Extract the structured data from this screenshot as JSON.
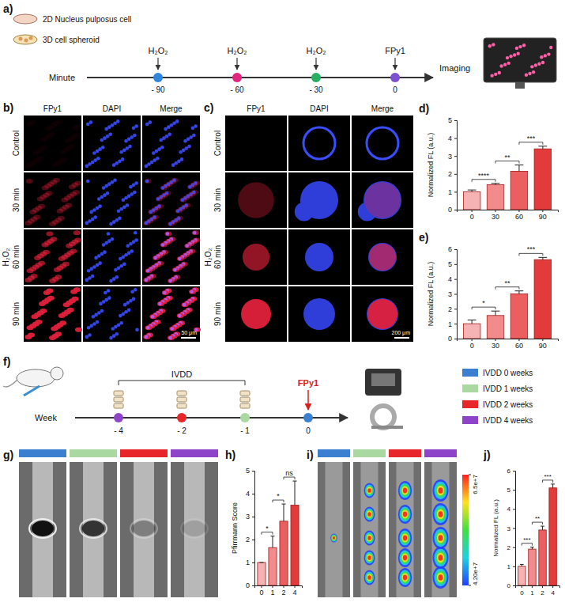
{
  "chart_data": [
    {
      "panel": "d)",
      "type": "bar",
      "categories": [
        "0",
        "30",
        "60",
        "90"
      ],
      "values": [
        1,
        1.4,
        2.15,
        3.4
      ],
      "errors": [
        0.1,
        0.07,
        0.35,
        0.15
      ],
      "colors": [
        "#f6b3b3",
        "#f28c8c",
        "#ea5f5f",
        "#e23b3b"
      ],
      "y_label": "Normalized FL (a.u.)",
      "ylim": [
        0,
        5
      ],
      "yticks": [
        0,
        1,
        2,
        3,
        4,
        5
      ],
      "annotations": [
        "****",
        "**",
        "***"
      ]
    },
    {
      "panel": "e)",
      "type": "bar",
      "categories": [
        "0",
        "30",
        "60",
        "90"
      ],
      "values": [
        1,
        1.55,
        3,
        5.3
      ],
      "errors": [
        0.25,
        0.3,
        0.2,
        0.15
      ],
      "colors": [
        "#f6b3b3",
        "#f28c8c",
        "#ea5f5f",
        "#e23b3b"
      ],
      "y_label": "Normalized FL (a.u.)",
      "ylim": [
        0,
        6
      ],
      "yticks": [
        0,
        1,
        2,
        3,
        4,
        5,
        6
      ],
      "annotations": [
        "*",
        "**",
        "***"
      ]
    },
    {
      "panel": "h)",
      "type": "bar",
      "categories": [
        "0",
        "1",
        "2",
        "4"
      ],
      "values": [
        1,
        1.65,
        2.8,
        3.5
      ],
      "errors": [
        0,
        0.5,
        0.75,
        1.05
      ],
      "colors": [
        "#f6b3b3",
        "#f28c8c",
        "#ea5f5f",
        "#e23b3b"
      ],
      "y_label": "Pfirrmann Score",
      "ylim": [
        0,
        5
      ],
      "yticks": [
        0,
        1,
        2,
        3,
        4,
        5
      ],
      "annotations": [
        "*",
        "*",
        "ns"
      ]
    },
    {
      "panel": "j)",
      "type": "bar",
      "categories": [
        "0",
        "1",
        "2",
        "4"
      ],
      "values": [
        1,
        1.9,
        2.9,
        5.1
      ],
      "errors": [
        0.1,
        0.1,
        0.2,
        0.2
      ],
      "colors": [
        "#f6b3b3",
        "#f28c8c",
        "#ea5f5f",
        "#e23b3b"
      ],
      "y_label": "Normalized FL (a.u.)",
      "ylim": [
        0,
        6
      ],
      "yticks": [
        0,
        1,
        2,
        3,
        4,
        5,
        6
      ],
      "annotations": [
        "***",
        "**",
        "***"
      ]
    }
  ],
  "panels": {
    "a": {
      "letter": "a)",
      "samples": [
        "2D Nucleus pulposus cell",
        "3D cell spheroid"
      ],
      "treatments": [
        "H₂O₂",
        "H₂O₂",
        "H₂O₂",
        "FPy1"
      ],
      "axis_label": "Minute",
      "times": [
        "- 90",
        "- 60",
        "- 30",
        "0"
      ],
      "colors": [
        "#2e86de",
        "#e0257d",
        "#27ae60",
        "#7d4fd1"
      ],
      "output": "Imaging"
    },
    "b": {
      "letter": "b)",
      "columns": [
        "FPy1",
        "DAPI",
        "Merge"
      ],
      "rows": [
        "Control",
        "30 min",
        "60 min",
        "90 min"
      ],
      "group": "H₂O₂",
      "scale_bar": "50 μm"
    },
    "c": {
      "letter": "c)",
      "columns": [
        "FPy1",
        "DAPI",
        "Merge"
      ],
      "rows": [
        "Control",
        "30 min",
        "60 min",
        "90 min"
      ],
      "group": "H₂O₂",
      "scale_bar": "200 μm"
    },
    "f": {
      "letter": "f)",
      "stage": "IVDD",
      "probe": "FPy1",
      "axis_label": "Week",
      "times": [
        "- 4",
        "- 2",
        "- 1",
        "0"
      ],
      "colors": [
        "#8e44c8",
        "#e8262a",
        "#a9d8a0",
        "#3b7fd1"
      ],
      "legend": [
        {
          "name": "IVDD 0 weeks",
          "color": "#3b7fd1"
        },
        {
          "name": "IVDD 1 weeks",
          "color": "#a9d8a0"
        },
        {
          "name": "IVDD 2 weeks",
          "color": "#e8262a"
        },
        {
          "name": "IVDD 4 weeks",
          "color": "#8e44c8"
        }
      ]
    },
    "g": {
      "letter": "g)"
    },
    "i": {
      "letter": "i)",
      "colorbar": {
        "range": [
          42000000,
          65000000
        ],
        "ticks": [
          {
            "value": 65000000,
            "label": "6.5e+7"
          },
          {
            "value": 42000000,
            "label": "4.20e+7"
          }
        ]
      }
    }
  }
}
